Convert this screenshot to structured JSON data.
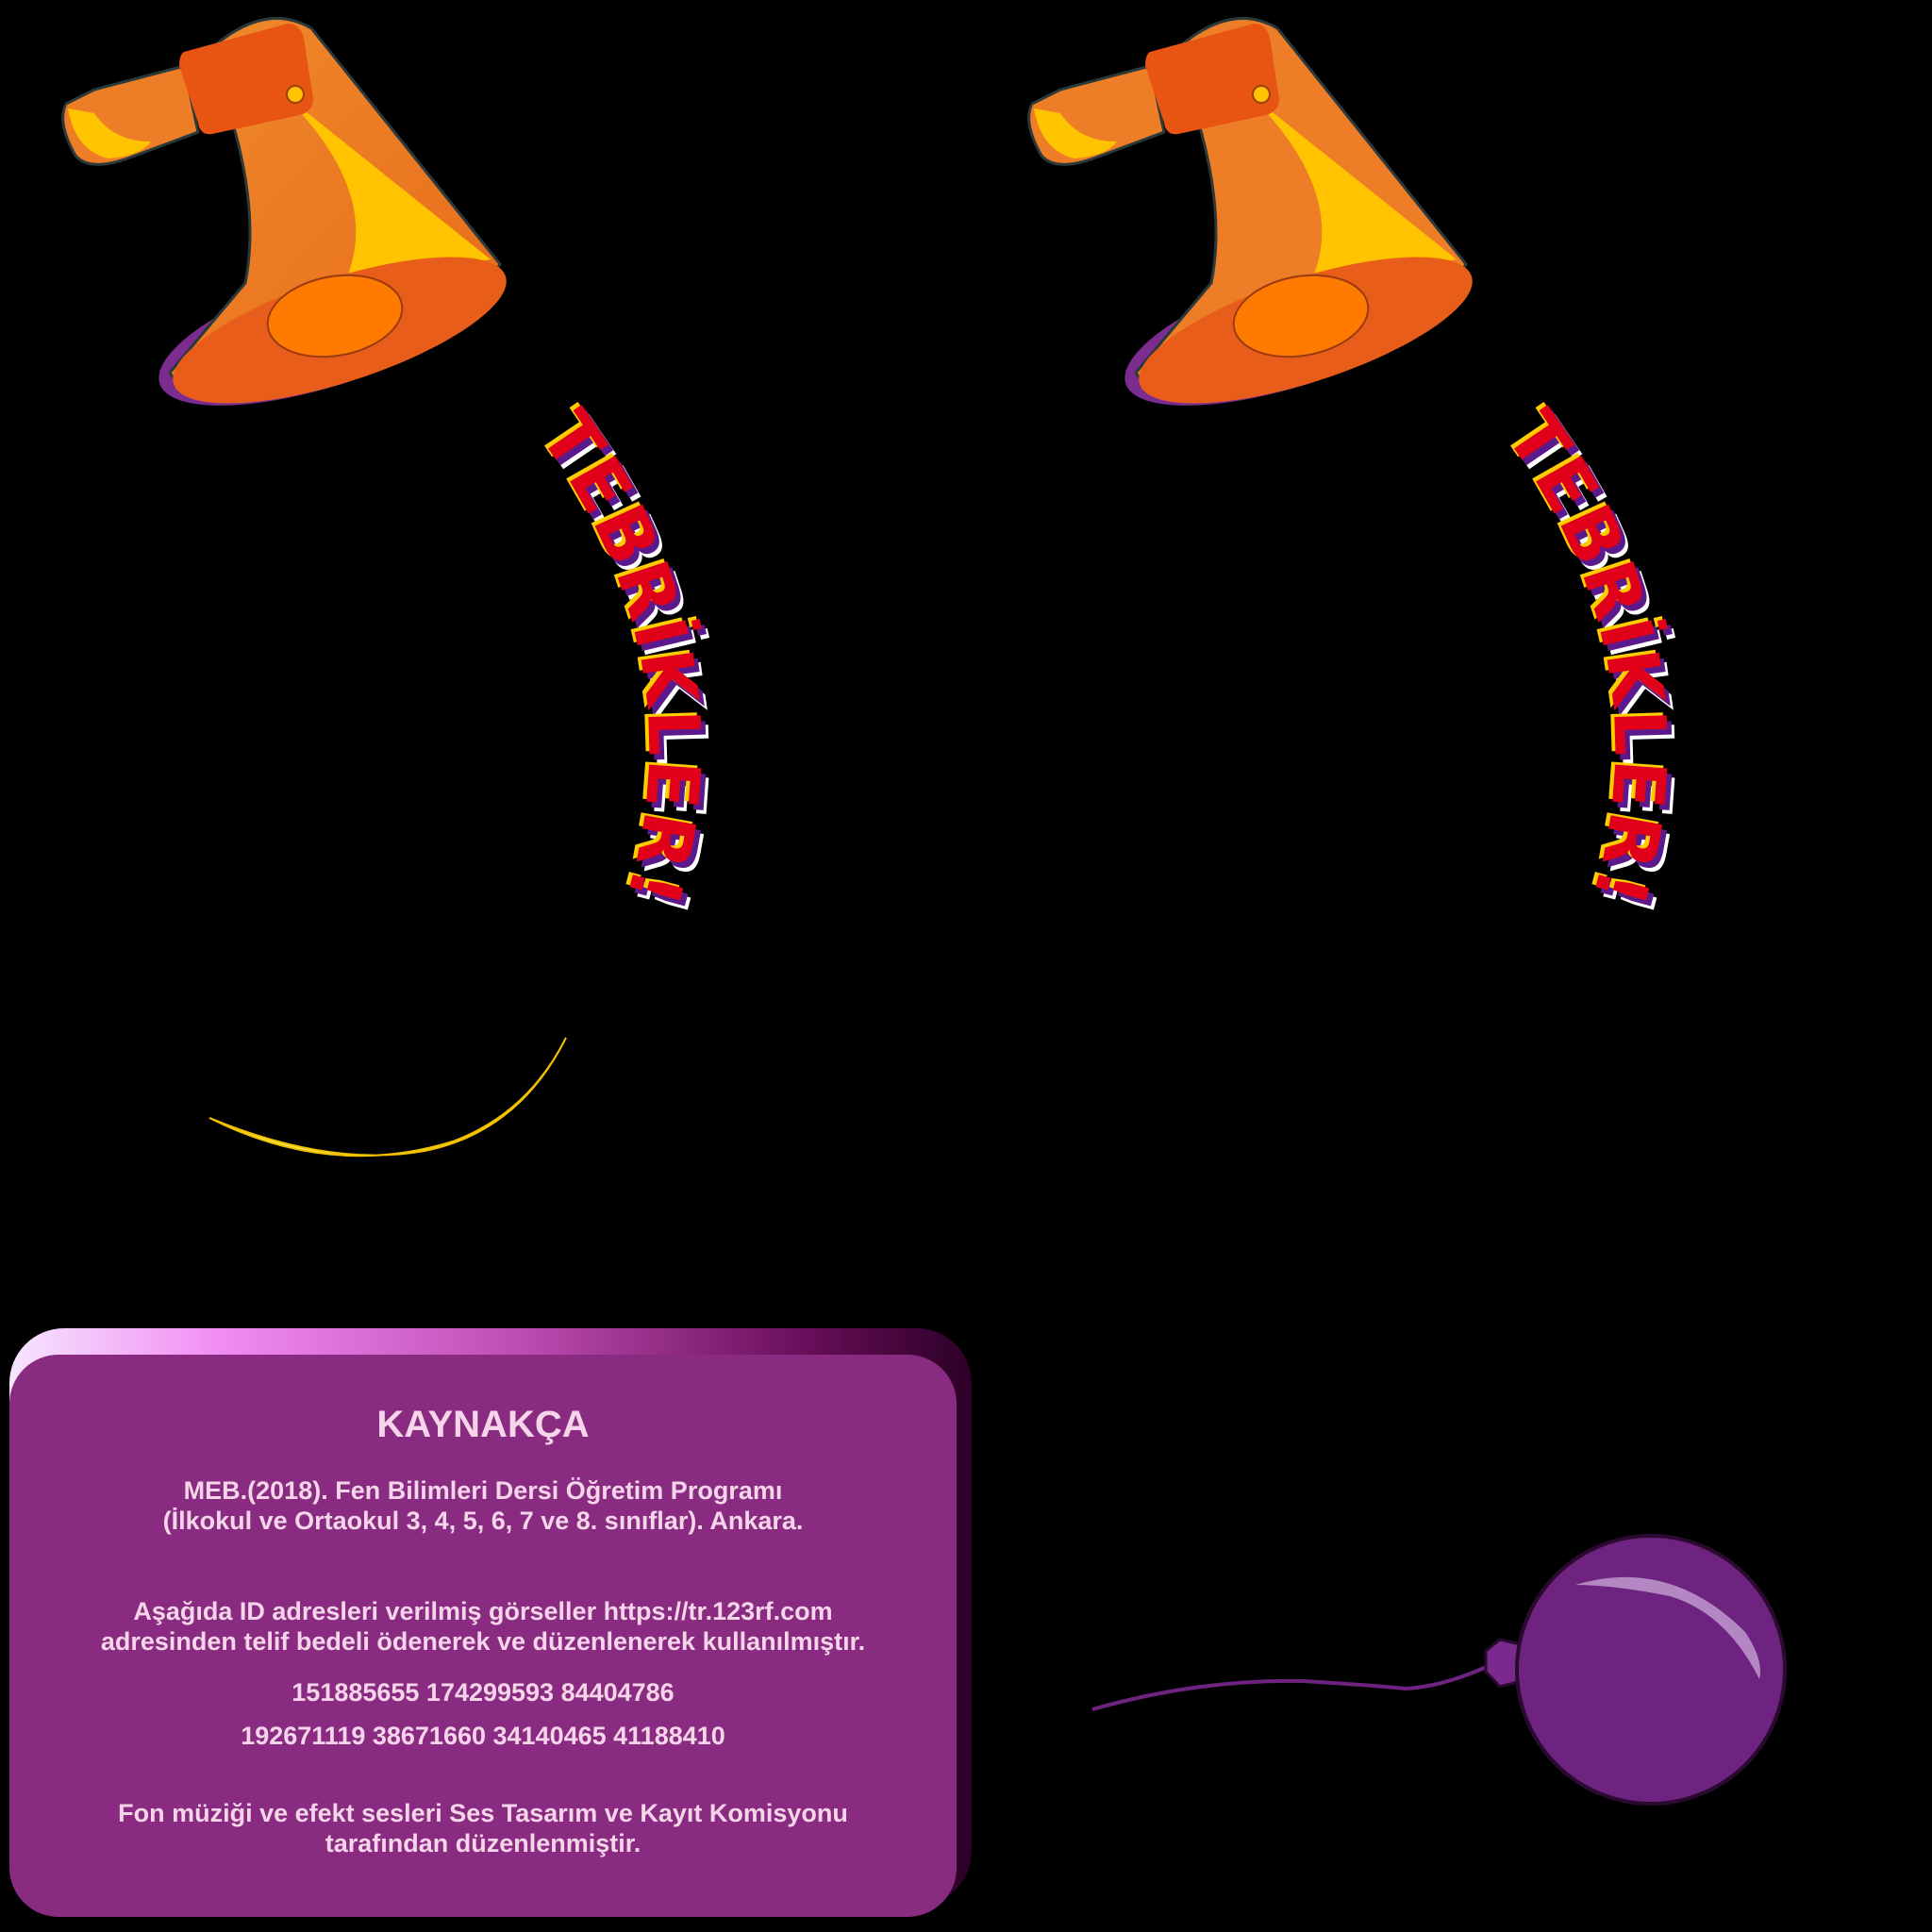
{
  "banner": {
    "word": "TEBRİKLER!",
    "colors": {
      "fill": "#e1001a",
      "shadow_yellow": "#ffcc00",
      "shadow_purple": "#5b1a8c",
      "shadow_white": "#ffffff"
    }
  },
  "icons": {
    "megaphone": "megaphone-icon",
    "balloon": "balloon-icon",
    "crescent": "crescent-icon"
  },
  "references": {
    "title": "KAYNAKÇA",
    "citation_line1": "MEB.(2018). Fen Bilimleri Dersi Öğretim Programı",
    "citation_line2": "(İlkokul ve Ortaokul 3, 4, 5, 6, 7 ve 8. sınıflar). Ankara.",
    "images_line1": "Aşağıda ID adresleri verilmiş görseller https://tr.123rf.com",
    "images_line2": "adresinden telif bedeli ödenerek ve düzenlenerek kullanılmıştır.",
    "ids_row1": "151885655  174299593  84404786",
    "ids_row2": "192671119   38671660  34140465  41188410",
    "music_line1": "Fon müziği ve efekt sesleri Ses Tasarım ve Kayıt Komisyonu",
    "music_line2": "tarafından düzenlenmiştir."
  },
  "colors": {
    "background": "#000000",
    "card": "#892b80",
    "card_text": "#f6d4ea",
    "megaphone_orange": "#ee7d28",
    "megaphone_yellow": "#ffc300",
    "balloon": "#6e2380",
    "crescent": "#ffe94d"
  }
}
